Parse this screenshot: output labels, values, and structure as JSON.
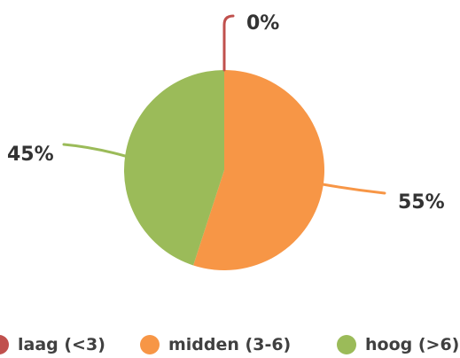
{
  "chart_data": {
    "type": "pie",
    "categories": [
      "laag (<3)",
      "midden (3-6)",
      "hoog (>6)"
    ],
    "values": [
      0,
      55,
      45
    ],
    "data_labels": [
      "0%",
      "55%",
      "45%"
    ],
    "colors": [
      "#c0504d",
      "#f79646",
      "#9bbb59"
    ],
    "legend_position": "bottom"
  }
}
